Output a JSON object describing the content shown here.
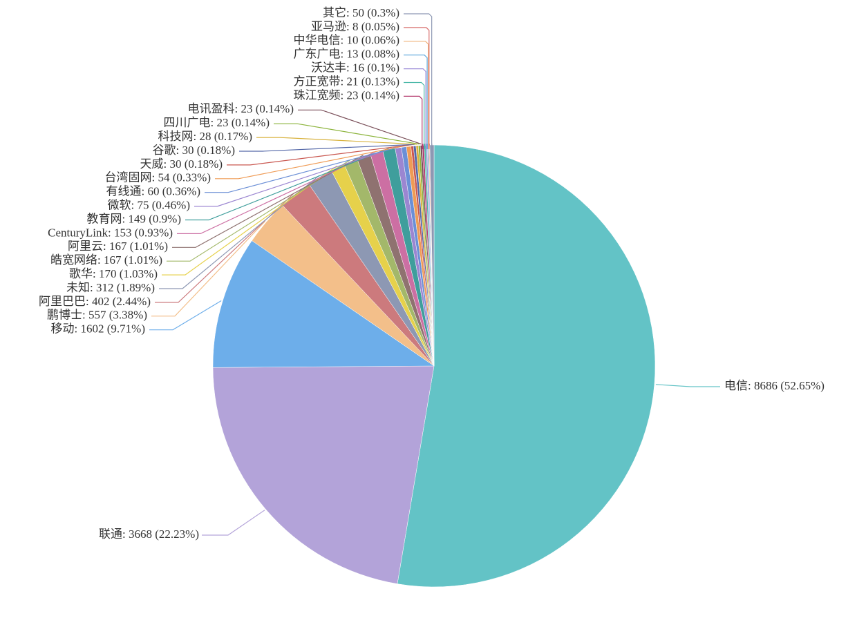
{
  "chart_data": {
    "type": "pie",
    "values": [
      8686,
      3668,
      1602,
      557,
      402,
      312,
      170,
      167,
      167,
      153,
      149,
      75,
      60,
      54,
      30,
      30,
      28,
      23,
      23,
      23,
      21,
      16,
      13,
      10,
      8,
      50
    ],
    "value_labels": [
      "电信: 8686 (52.65%)",
      "联通: 3668 (22.23%)",
      "移动: 1602 (9.71%)",
      "鹏博士: 557 (3.38%)",
      "阿里巴巴: 402 (2.44%)",
      "未知: 312 (1.89%)",
      "歌华: 170 (1.03%)",
      "皓宽网络: 167 (1.01%)",
      "阿里云: 167 (1.01%)",
      "CenturyLink: 153 (0.93%)",
      "教育网: 149 (0.9%)",
      "微软: 75 (0.46%)",
      "有线通: 60 (0.36%)",
      "台湾固网: 54 (0.33%)",
      "天威: 30 (0.18%)",
      "谷歌: 30 (0.18%)",
      "科技网: 28 (0.17%)",
      "四川广电: 23 (0.14%)",
      "电讯盈科: 23 (0.14%)",
      "珠江宽频: 23 (0.14%)",
      "方正宽带: 21 (0.13%)",
      "沃达丰: 16 (0.1%)",
      "广东广电: 13 (0.08%)",
      "中华电信: 10 (0.06%)",
      "亚马逊: 8 (0.05%)",
      "其它: 50 (0.3%)"
    ],
    "colors": [
      "#63c3c6",
      "#b3a3d9",
      "#6daeea",
      "#f3bf8a",
      "#cc7a7d",
      "#8d98b3",
      "#e6d14b",
      "#a3b86a",
      "#8f7270",
      "#cc6fa3",
      "#3f9e9c",
      "#9b86d1",
      "#6b8fd6",
      "#ef9b55",
      "#c9574f",
      "#5468a8",
      "#d8b23e",
      "#8bb33a",
      "#7a4f59",
      "#b33a6e",
      "#4ab8a8",
      "#9d8ed9",
      "#5fa8dc",
      "#f0b27a",
      "#d9706f",
      "#8d98b3"
    ]
  }
}
